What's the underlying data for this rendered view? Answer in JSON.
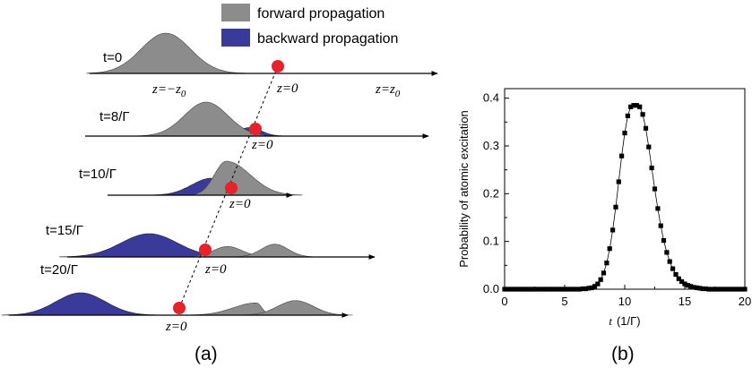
{
  "legend": {
    "forward": "forward propagation",
    "backward": "backward propagation"
  },
  "colors": {
    "forward": "#8c8c8c",
    "backward": "#3a3a9a",
    "atom": "#e8222a",
    "axis": "#000000"
  },
  "panel_a": {
    "label": "(a)",
    "axis_labels": {
      "minus": "z=−z",
      "minus_sub": "0",
      "zero": "z=0",
      "plus": "z=z",
      "plus_sub": "0"
    },
    "rows": [
      {
        "time": "t=0",
        "forward": [
          {
            "center": -1.0,
            "width": 0.22,
            "amp": 1.0,
            "rise": 1.0,
            "fall": 1.0
          }
        ],
        "backward": [],
        "atom": 0.0
      },
      {
        "time": "t=8/Γ",
        "forward": [
          {
            "center": -0.5,
            "width": 0.22,
            "amp": 1.0,
            "rise": 1.0,
            "fall": 1.0
          }
        ],
        "backward": [
          {
            "center": -0.06,
            "width": 0.12,
            "amp": 0.25,
            "rise": 1.0,
            "fall": 1.0
          }
        ],
        "atom": 0.0
      },
      {
        "time": "t=10/Γ",
        "forward": [
          {
            "center": -0.05,
            "width": 0.24,
            "amp": 1.0,
            "rise": 0.5,
            "fall": 1.0
          }
        ],
        "backward": [
          {
            "center": -0.2,
            "width": 0.2,
            "amp": 0.5,
            "rise": 1.0,
            "fall": 0.12
          }
        ],
        "atom": 0.0
      },
      {
        "time": "t=15/Γ",
        "forward": [
          {
            "center": 0.2,
            "width": 0.13,
            "amp": 0.45,
            "rise": 1.0,
            "fall": 1.0
          },
          {
            "center": 0.62,
            "width": 0.12,
            "amp": 0.55,
            "rise": 1.0,
            "fall": 1.0
          }
        ],
        "backward": [
          {
            "center": -0.5,
            "width": 0.25,
            "amp": 1.0,
            "rise": 1.0,
            "fall": 1.0
          }
        ],
        "atom": 0.0
      },
      {
        "time": "t=20/Γ",
        "forward": [
          {
            "center": 0.78,
            "width": 0.23,
            "amp": 0.55,
            "rise": 1.0,
            "fall": 0.25
          },
          {
            "center": 1.18,
            "width": 0.18,
            "amp": 0.65,
            "rise": 1.0,
            "fall": 1.0
          }
        ],
        "backward": [
          {
            "center": -1.0,
            "width": 0.25,
            "amp": 1.0,
            "rise": 1.0,
            "fall": 1.0
          }
        ],
        "atom": 0.0
      }
    ]
  },
  "chart_data": {
    "type": "scatter",
    "panel_label": "(b)",
    "xlabel_var": "t",
    "xlabel_unit": "(1/Γ)",
    "ylabel": "Probability of atomic excitation",
    "xlim": [
      0,
      20
    ],
    "ylim": [
      0,
      0.42
    ],
    "xticks": [
      0,
      5,
      10,
      15,
      20
    ],
    "yticks": [
      0.0,
      0.1,
      0.2,
      0.3,
      0.4
    ],
    "xtick_labels": [
      "0",
      "5",
      "10",
      "15",
      "20"
    ],
    "ytick_labels": [
      "0.0",
      "0.1",
      "0.2",
      "0.3",
      "0.4"
    ],
    "grid": false,
    "marker": "square",
    "x": [
      0,
      0.25,
      0.5,
      0.75,
      1,
      1.25,
      1.5,
      1.75,
      2,
      2.25,
      2.5,
      2.75,
      3,
      3.25,
      3.5,
      3.75,
      4,
      4.25,
      4.5,
      4.75,
      5,
      5.25,
      5.5,
      5.75,
      6,
      6.25,
      6.5,
      6.75,
      7,
      7.25,
      7.5,
      7.75,
      8,
      8.25,
      8.5,
      8.75,
      9,
      9.25,
      9.5,
      9.75,
      10,
      10.25,
      10.5,
      10.75,
      11,
      11.25,
      11.5,
      11.75,
      12,
      12.25,
      12.5,
      12.75,
      13,
      13.25,
      13.5,
      13.75,
      14,
      14.25,
      14.5,
      14.75,
      15,
      15.25,
      15.5,
      15.75,
      16,
      16.25,
      16.5,
      16.75,
      17,
      17.25,
      17.5,
      17.75,
      18,
      18.25,
      18.5,
      18.75,
      19,
      19.25,
      19.5,
      19.75,
      20
    ],
    "y": [
      0,
      0,
      0,
      0,
      0,
      0,
      0,
      0,
      0,
      0,
      0,
      0,
      0,
      0,
      0,
      0,
      0,
      0,
      0,
      0,
      0,
      0,
      0,
      0,
      0,
      0,
      0.001,
      0.001,
      0.002,
      0.003,
      0.006,
      0.011,
      0.02,
      0.034,
      0.055,
      0.085,
      0.124,
      0.172,
      0.225,
      0.279,
      0.327,
      0.363,
      0.382,
      0.385,
      0.385,
      0.382,
      0.366,
      0.337,
      0.298,
      0.254,
      0.21,
      0.169,
      0.133,
      0.102,
      0.077,
      0.058,
      0.043,
      0.031,
      0.022,
      0.016,
      0.011,
      0.008,
      0.006,
      0.004,
      0.003,
      0.002,
      0.001,
      0.001,
      0,
      0,
      0,
      0,
      0,
      0,
      0,
      0,
      0,
      0,
      0,
      0,
      0
    ]
  }
}
